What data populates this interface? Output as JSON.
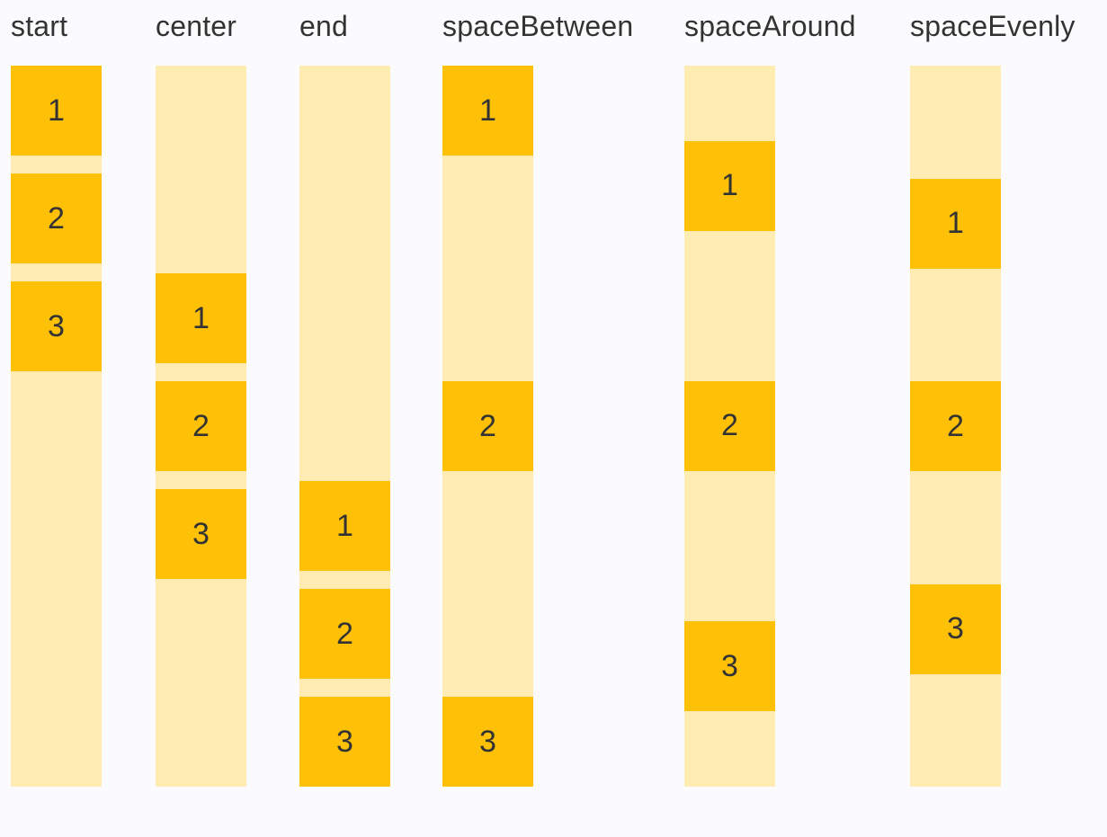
{
  "figure": {
    "description_labels_visible_only": false
  },
  "colors": {
    "background": "#FBFBFE",
    "track": "#FFECB3",
    "box": "#FFC107",
    "text": "#333333"
  },
  "columns": [
    {
      "label": "start",
      "alignment": "start",
      "items": [
        "1",
        "2",
        "3"
      ]
    },
    {
      "label": "center",
      "alignment": "center",
      "items": [
        "1",
        "2",
        "3"
      ]
    },
    {
      "label": "end",
      "alignment": "end",
      "items": [
        "1",
        "2",
        "3"
      ]
    },
    {
      "label": "spaceBetween",
      "alignment": "spaceBetween",
      "items": [
        "1",
        "2",
        "3"
      ]
    },
    {
      "label": "spaceAround",
      "alignment": "spaceAround",
      "items": [
        "1",
        "2",
        "3"
      ]
    },
    {
      "label": "spaceEvenly",
      "alignment": "spaceEvenly",
      "items": [
        "1",
        "2",
        "3"
      ]
    }
  ]
}
